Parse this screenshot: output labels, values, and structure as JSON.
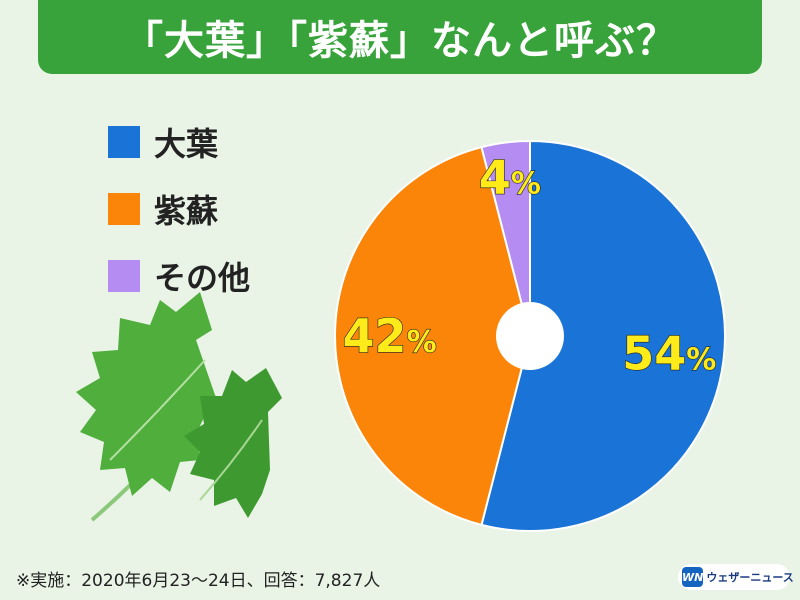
{
  "header": {
    "title": "「大葉」「紫蘇」なんと呼ぶ？"
  },
  "chart_data": {
    "type": "pie",
    "style": "donut",
    "categories": [
      "大葉",
      "紫蘇",
      "その他"
    ],
    "values": [
      54,
      42,
      4
    ],
    "value_labels": [
      "54",
      "42",
      "4"
    ],
    "unit": "%",
    "colors": [
      "#1a73d6",
      "#fb8508",
      "#b48cf2"
    ],
    "label_color": "#ffeb1a",
    "legend_position": "top-left"
  },
  "legend": {
    "items": [
      {
        "label": "大葉",
        "color": "#1a73d6"
      },
      {
        "label": "紫蘇",
        "color": "#fb8508"
      },
      {
        "label": "その他",
        "color": "#b48cf2"
      }
    ]
  },
  "illustration": {
    "icon": "shiso-leaf-icon",
    "color": "#4caf3a"
  },
  "footer": {
    "note": "※実施：2020年6月23～24日、回答：7,827人",
    "brand_logo": "WN",
    "brand_name": "ウェザーニュース",
    "brand_color": "#1565c0"
  }
}
